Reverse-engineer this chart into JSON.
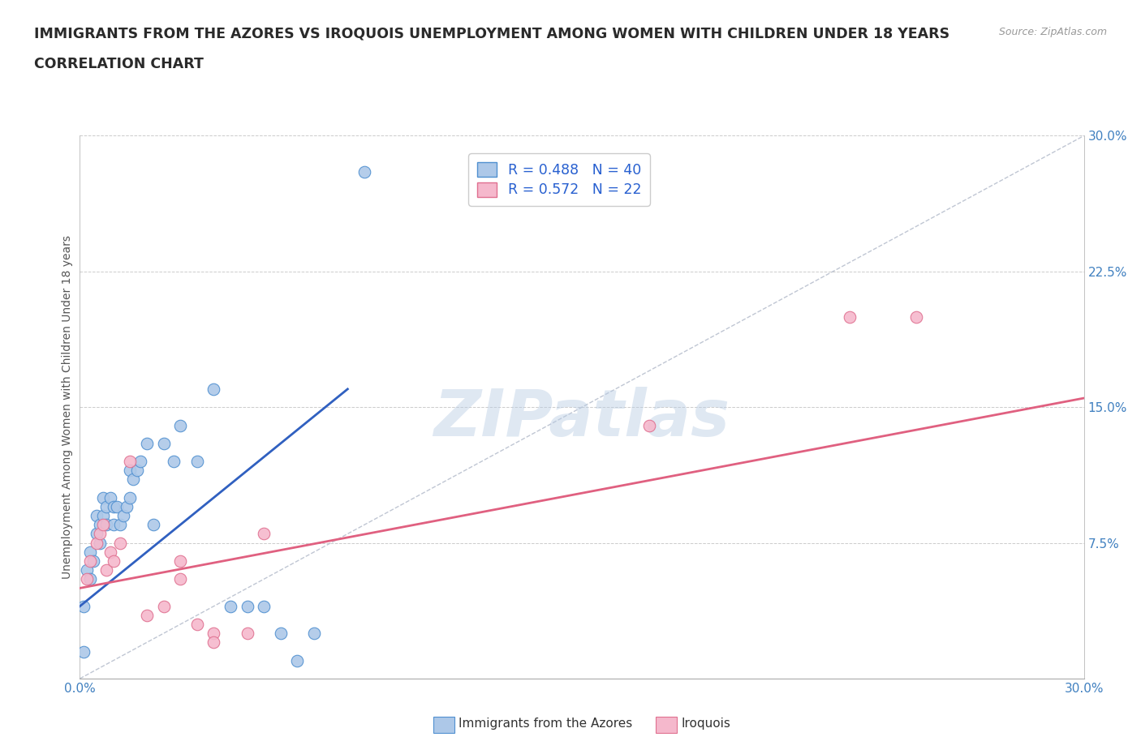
{
  "title_line1": "IMMIGRANTS FROM THE AZORES VS IROQUOIS UNEMPLOYMENT AMONG WOMEN WITH CHILDREN UNDER 18 YEARS",
  "title_line2": "CORRELATION CHART",
  "source_text": "Source: ZipAtlas.com",
  "watermark": "ZIPatlas",
  "ylabel": "Unemployment Among Women with Children Under 18 years",
  "xmin": 0.0,
  "xmax": 0.3,
  "ymin": 0.0,
  "ymax": 0.3,
  "yticks": [
    0.0,
    0.075,
    0.15,
    0.225,
    0.3
  ],
  "ytick_labels": [
    "",
    "7.5%",
    "15.0%",
    "22.5%",
    "30.0%"
  ],
  "xticks": [
    0.0,
    0.075,
    0.15,
    0.225,
    0.3
  ],
  "xtick_labels": [
    "0.0%",
    "",
    "",
    "",
    "30.0%"
  ],
  "blue_R": "0.488",
  "blue_N": "40",
  "pink_R": "0.572",
  "pink_N": "22",
  "blue_fill": "#adc8e8",
  "pink_fill": "#f5b8cc",
  "blue_edge": "#5090d0",
  "pink_edge": "#e07090",
  "blue_line_color": "#3060c0",
  "pink_line_color": "#e06080",
  "legend_color": "#2860d0",
  "blue_scatter_x": [
    0.001,
    0.002,
    0.003,
    0.003,
    0.004,
    0.005,
    0.005,
    0.006,
    0.006,
    0.007,
    0.007,
    0.008,
    0.008,
    0.009,
    0.01,
    0.01,
    0.011,
    0.012,
    0.013,
    0.014,
    0.015,
    0.015,
    0.016,
    0.017,
    0.018,
    0.02,
    0.022,
    0.025,
    0.028,
    0.03,
    0.035,
    0.04,
    0.045,
    0.05,
    0.055,
    0.06,
    0.065,
    0.07,
    0.001,
    0.085
  ],
  "blue_scatter_y": [
    0.04,
    0.06,
    0.055,
    0.07,
    0.065,
    0.08,
    0.09,
    0.085,
    0.075,
    0.09,
    0.1,
    0.095,
    0.085,
    0.1,
    0.095,
    0.085,
    0.095,
    0.085,
    0.09,
    0.095,
    0.1,
    0.115,
    0.11,
    0.115,
    0.12,
    0.13,
    0.085,
    0.13,
    0.12,
    0.14,
    0.12,
    0.16,
    0.04,
    0.04,
    0.04,
    0.025,
    0.01,
    0.025,
    0.015,
    0.28
  ],
  "pink_scatter_x": [
    0.002,
    0.003,
    0.005,
    0.006,
    0.007,
    0.008,
    0.009,
    0.01,
    0.012,
    0.015,
    0.02,
    0.025,
    0.03,
    0.03,
    0.035,
    0.04,
    0.04,
    0.05,
    0.055,
    0.17,
    0.23,
    0.25
  ],
  "pink_scatter_y": [
    0.055,
    0.065,
    0.075,
    0.08,
    0.085,
    0.06,
    0.07,
    0.065,
    0.075,
    0.12,
    0.035,
    0.04,
    0.055,
    0.065,
    0.03,
    0.025,
    0.02,
    0.025,
    0.08,
    0.14,
    0.2,
    0.2
  ],
  "blue_line_x": [
    0.0,
    0.08
  ],
  "blue_line_y": [
    0.04,
    0.16
  ],
  "pink_line_x": [
    0.0,
    0.3
  ],
  "pink_line_y": [
    0.05,
    0.155
  ],
  "diag_line_x": [
    0.0,
    0.3
  ],
  "diag_line_y": [
    0.0,
    0.3
  ],
  "background_color": "#ffffff",
  "grid_color": "#cccccc",
  "title_color": "#2a2a2a",
  "axis_label_color": "#555555",
  "tick_color": "#4080c0",
  "legend_label1": "Immigrants from the Azores",
  "legend_label2": "Iroquois"
}
